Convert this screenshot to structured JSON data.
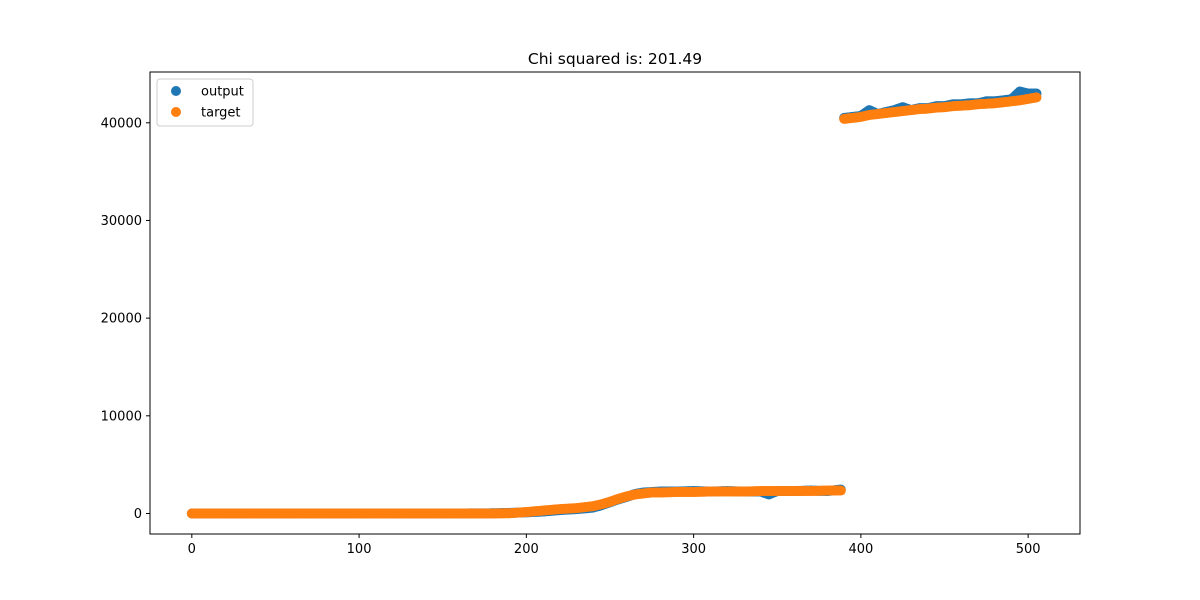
{
  "chart_data": {
    "type": "scatter",
    "title": "Chi squared is: 201.49",
    "xlabel": "",
    "ylabel": "",
    "xlim": [
      -25,
      531
    ],
    "ylim": [
      -2100,
      45200
    ],
    "x_ticks": [
      0,
      100,
      200,
      300,
      400,
      500
    ],
    "y_ticks": [
      0,
      10000,
      20000,
      30000,
      40000
    ],
    "grid": false,
    "legend_position": "top-left",
    "series": [
      {
        "name": "output",
        "color": "#1f77b4",
        "x": [
          0,
          20,
          40,
          60,
          80,
          100,
          120,
          140,
          160,
          180,
          190,
          200,
          210,
          220,
          230,
          240,
          245,
          250,
          255,
          260,
          265,
          270,
          275,
          280,
          290,
          300,
          310,
          320,
          330,
          340,
          345,
          350,
          360,
          370,
          380,
          388,
          390,
          395,
          400,
          405,
          410,
          415,
          420,
          425,
          430,
          435,
          440,
          445,
          450,
          455,
          460,
          465,
          470,
          475,
          480,
          485,
          490,
          495,
          500,
          505
        ],
        "y": [
          0,
          0,
          0,
          0,
          0,
          0,
          0,
          0,
          0,
          20,
          60,
          120,
          200,
          350,
          450,
          600,
          850,
          1150,
          1450,
          1700,
          2000,
          2150,
          2200,
          2250,
          2250,
          2300,
          2250,
          2300,
          2250,
          2250,
          1950,
          2300,
          2300,
          2350,
          2300,
          2450,
          40500,
          40600,
          40700,
          41300,
          40900,
          41100,
          41300,
          41600,
          41300,
          41500,
          41500,
          41700,
          41700,
          41900,
          41900,
          42000,
          42000,
          42200,
          42200,
          42300,
          42400,
          43200,
          43000,
          43000
        ]
      },
      {
        "name": "target",
        "color": "#ff7f0e",
        "x": [
          0,
          20,
          40,
          60,
          80,
          100,
          120,
          140,
          160,
          180,
          190,
          200,
          210,
          220,
          230,
          240,
          245,
          250,
          255,
          260,
          265,
          270,
          275,
          280,
          290,
          300,
          310,
          320,
          330,
          340,
          345,
          350,
          360,
          370,
          380,
          388,
          390,
          395,
          400,
          405,
          410,
          415,
          420,
          425,
          430,
          435,
          440,
          445,
          450,
          455,
          460,
          465,
          470,
          475,
          480,
          485,
          490,
          495,
          500,
          505
        ],
        "y": [
          0,
          0,
          0,
          0,
          0,
          0,
          0,
          0,
          0,
          0,
          30,
          150,
          300,
          450,
          550,
          750,
          950,
          1200,
          1500,
          1750,
          1950,
          2050,
          2150,
          2150,
          2200,
          2200,
          2250,
          2250,
          2250,
          2300,
          2300,
          2300,
          2300,
          2300,
          2350,
          2350,
          40400,
          40500,
          40600,
          40800,
          40900,
          41000,
          41100,
          41200,
          41300,
          41400,
          41450,
          41550,
          41600,
          41700,
          41750,
          41800,
          41900,
          41950,
          42000,
          42100,
          42200,
          42300,
          42450,
          42600
        ]
      }
    ]
  }
}
